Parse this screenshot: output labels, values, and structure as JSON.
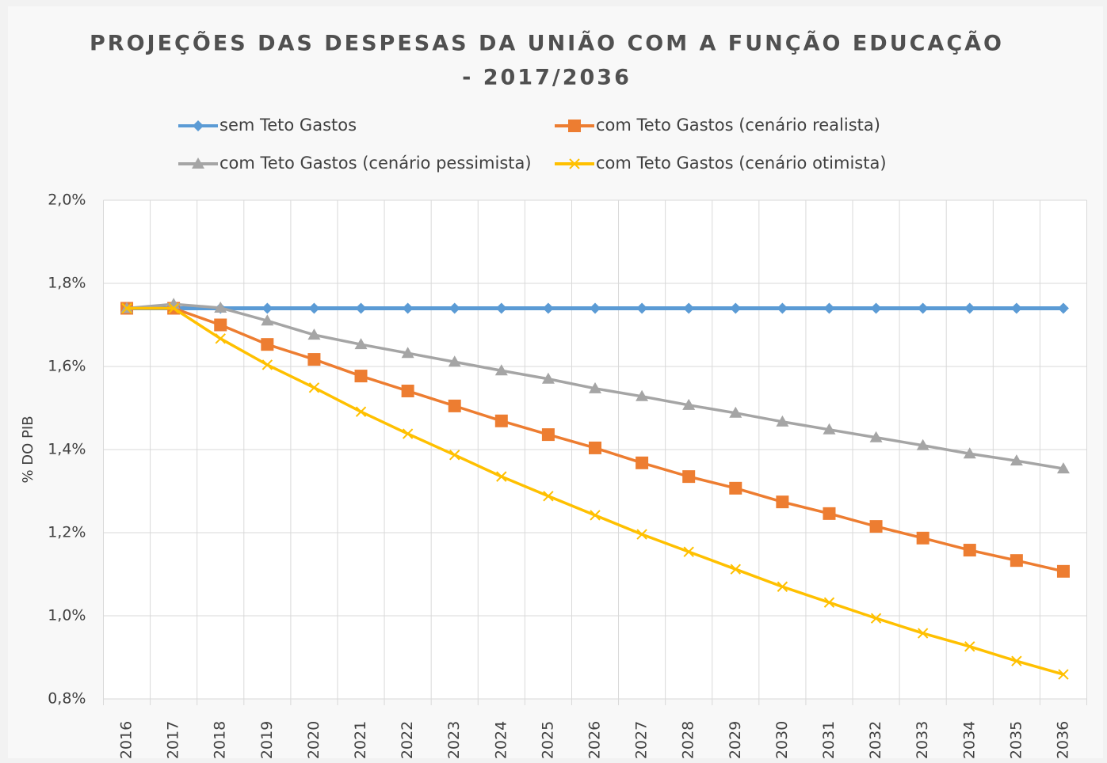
{
  "chart_data": {
    "type": "line",
    "title": "PROJEÇÕES DAS DESPESAS DA UNIÃO COM A FUNÇÃO EDUCAÇÃO",
    "subtitle": "- 2017/2036",
    "y_label": "% DO PIB",
    "categories": [
      "2016",
      "2017",
      "2018",
      "2019",
      "2020",
      "2021",
      "2022",
      "2023",
      "2024",
      "2025",
      "2026",
      "2027",
      "2028",
      "2029",
      "2030",
      "2031",
      "2032",
      "2033",
      "2034",
      "2035",
      "2036"
    ],
    "series": [
      {
        "name": "sem Teto Gastos",
        "color": "#5b9bd5",
        "marker": "diamond",
        "values": [
          1.74,
          1.74,
          1.74,
          1.74,
          1.74,
          1.74,
          1.74,
          1.74,
          1.74,
          1.74,
          1.74,
          1.74,
          1.74,
          1.74,
          1.74,
          1.74,
          1.74,
          1.74,
          1.74,
          1.74,
          1.74
        ]
      },
      {
        "name": "com Teto Gastos (cenário realista)",
        "color": "#ed7d31",
        "marker": "square",
        "values": [
          1.74,
          1.74,
          1.7,
          1.653,
          1.617,
          1.577,
          1.541,
          1.505,
          1.469,
          1.436,
          1.404,
          1.368,
          1.335,
          1.307,
          1.274,
          1.246,
          1.215,
          1.187,
          1.158,
          1.133,
          1.107
        ]
      },
      {
        "name": "com Teto Gastos (cenário pessimista)",
        "color": "#a5a5a5",
        "marker": "triangle",
        "values": [
          1.74,
          1.75,
          1.741,
          1.71,
          1.676,
          1.653,
          1.632,
          1.611,
          1.59,
          1.57,
          1.547,
          1.528,
          1.507,
          1.488,
          1.467,
          1.448,
          1.429,
          1.41,
          1.39,
          1.373,
          1.354
        ]
      },
      {
        "name": "com Teto Gastos (cenário otimista)",
        "color": "#ffc000",
        "marker": "x",
        "values": [
          1.74,
          1.74,
          1.667,
          1.604,
          1.549,
          1.491,
          1.438,
          1.387,
          1.335,
          1.288,
          1.242,
          1.196,
          1.154,
          1.112,
          1.07,
          1.032,
          0.994,
          0.958,
          0.926,
          0.891,
          0.859
        ]
      }
    ],
    "ylim": [
      0.8,
      2.0
    ],
    "yticks": [
      {
        "value": 0.8,
        "label": "0,8%"
      },
      {
        "value": 1.0,
        "label": "1,0%"
      },
      {
        "value": 1.2,
        "label": "1,2%"
      },
      {
        "value": 1.4,
        "label": "1,4%"
      },
      {
        "value": 1.6,
        "label": "1,6%"
      },
      {
        "value": 1.8,
        "label": "1,8%"
      },
      {
        "value": 2.0,
        "label": "2,0%"
      }
    ],
    "grid": true
  }
}
